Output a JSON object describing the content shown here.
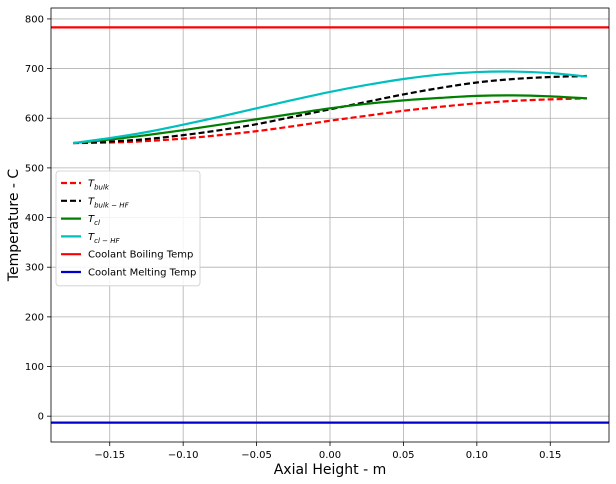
{
  "chart_data": {
    "type": "line",
    "title": "",
    "xlabel": "Axial Height - m",
    "ylabel": "Temperature - C",
    "xlim": [
      -0.19,
      0.19
    ],
    "ylim": [
      -52,
      822
    ],
    "xticks": [
      -0.15,
      -0.1,
      -0.05,
      0.0,
      0.05,
      0.1,
      0.15
    ],
    "xtick_labels": [
      "−0.15",
      "−0.10",
      "−0.05",
      "0.00",
      "0.05",
      "0.10",
      "0.15"
    ],
    "yticks": [
      0,
      100,
      200,
      300,
      400,
      500,
      600,
      700,
      800
    ],
    "ytick_labels": [
      "0",
      "100",
      "200",
      "300",
      "400",
      "500",
      "600",
      "700",
      "800"
    ],
    "grid": true,
    "legend_position": "center-left",
    "series": [
      {
        "name": "T_bulk",
        "legend_main": "T",
        "legend_sub": "bulk",
        "color": "#ff0000",
        "style": "dashed",
        "x": [
          -0.175,
          -0.15,
          -0.125,
          -0.1,
          -0.075,
          -0.05,
          -0.025,
          0.0,
          0.025,
          0.05,
          0.075,
          0.1,
          0.125,
          0.15,
          0.175
        ],
        "y": [
          550,
          551,
          554,
          559,
          566,
          574,
          584,
          595,
          605,
          615,
          623,
          630,
          635,
          638,
          640
        ]
      },
      {
        "name": "T_bulk-HF",
        "legend_main": "T",
        "legend_sub": "bulk − HF",
        "color": "#000000",
        "style": "dashed",
        "x": [
          -0.175,
          -0.15,
          -0.125,
          -0.1,
          -0.075,
          -0.05,
          -0.025,
          0.0,
          0.025,
          0.05,
          0.075,
          0.1,
          0.125,
          0.15,
          0.175
        ],
        "y": [
          550,
          553,
          558,
          566,
          576,
          588,
          603,
          618,
          633,
          648,
          661,
          672,
          679,
          683,
          685
        ]
      },
      {
        "name": "T_cl",
        "legend_main": "T",
        "legend_sub": "cl",
        "color": "#008000",
        "style": "solid",
        "x": [
          -0.175,
          -0.15,
          -0.125,
          -0.1,
          -0.075,
          -0.05,
          -0.025,
          0.0,
          0.025,
          0.05,
          0.075,
          0.1,
          0.125,
          0.15,
          0.175
        ],
        "y": [
          550,
          557,
          566,
          576,
          587,
          598,
          609,
          620,
          629,
          636,
          641,
          645,
          646,
          644,
          640
        ]
      },
      {
        "name": "T_cl-HF",
        "legend_main": "T",
        "legend_sub": "cl − HF",
        "color": "#00bfbf",
        "style": "solid",
        "x": [
          -0.175,
          -0.15,
          -0.125,
          -0.1,
          -0.075,
          -0.05,
          -0.025,
          0.0,
          0.025,
          0.05,
          0.075,
          0.1,
          0.125,
          0.15,
          0.175
        ],
        "y": [
          550,
          560,
          572,
          587,
          603,
          620,
          637,
          653,
          667,
          679,
          688,
          693,
          694,
          691,
          684
        ]
      },
      {
        "name": "Coolant Boiling Temp",
        "legend_main": "Coolant Boiling Temp",
        "legend_sub": "",
        "color": "#ff0000",
        "style": "solid",
        "x": [
          -0.19,
          0.19
        ],
        "y": [
          783,
          783
        ]
      },
      {
        "name": "Coolant Melting Temp",
        "legend_main": "Coolant Melting Temp",
        "legend_sub": "",
        "color": "#0000cc",
        "style": "solid",
        "x": [
          -0.19,
          0.19
        ],
        "y": [
          -13,
          -13
        ]
      }
    ]
  }
}
